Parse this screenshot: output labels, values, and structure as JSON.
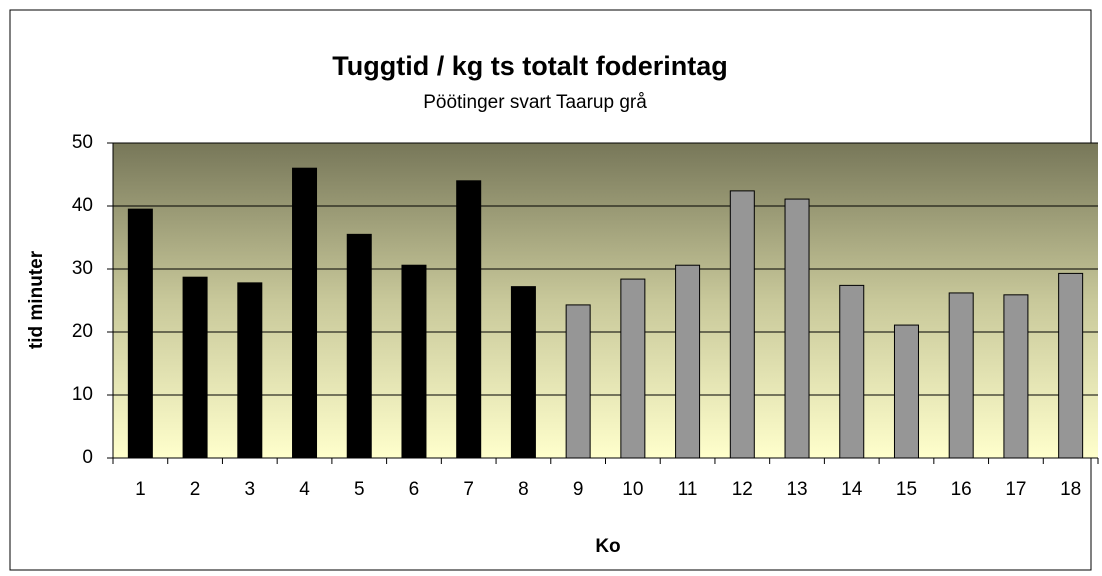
{
  "chart_data": {
    "type": "bar",
    "title": "Tuggtid / kg ts totalt foderintag",
    "subtitle": "Pöötinger svart Taarup grå",
    "x_label": "Ko",
    "y_label": "tid minuter",
    "categories": [
      "1",
      "2",
      "3",
      "4",
      "5",
      "6",
      "7",
      "8",
      "9",
      "10",
      "11",
      "12",
      "13",
      "14",
      "15",
      "16",
      "17",
      "18"
    ],
    "values": [
      39.5,
      28.7,
      27.8,
      46,
      35.5,
      30.6,
      44,
      27.2,
      24.3,
      28.4,
      30.6,
      42.4,
      41.1,
      27.4,
      21.1,
      26.2,
      25.9,
      29.3
    ],
    "colors": [
      "#000000",
      "#000000",
      "#000000",
      "#000000",
      "#000000",
      "#000000",
      "#000000",
      "#000000",
      "#969696",
      "#969696",
      "#969696",
      "#969696",
      "#969696",
      "#969696",
      "#969696",
      "#969696",
      "#969696",
      "#969696"
    ],
    "ylim": [
      0,
      50
    ],
    "yticks": [
      0,
      10,
      20,
      30,
      40,
      50
    ],
    "grid": true
  }
}
